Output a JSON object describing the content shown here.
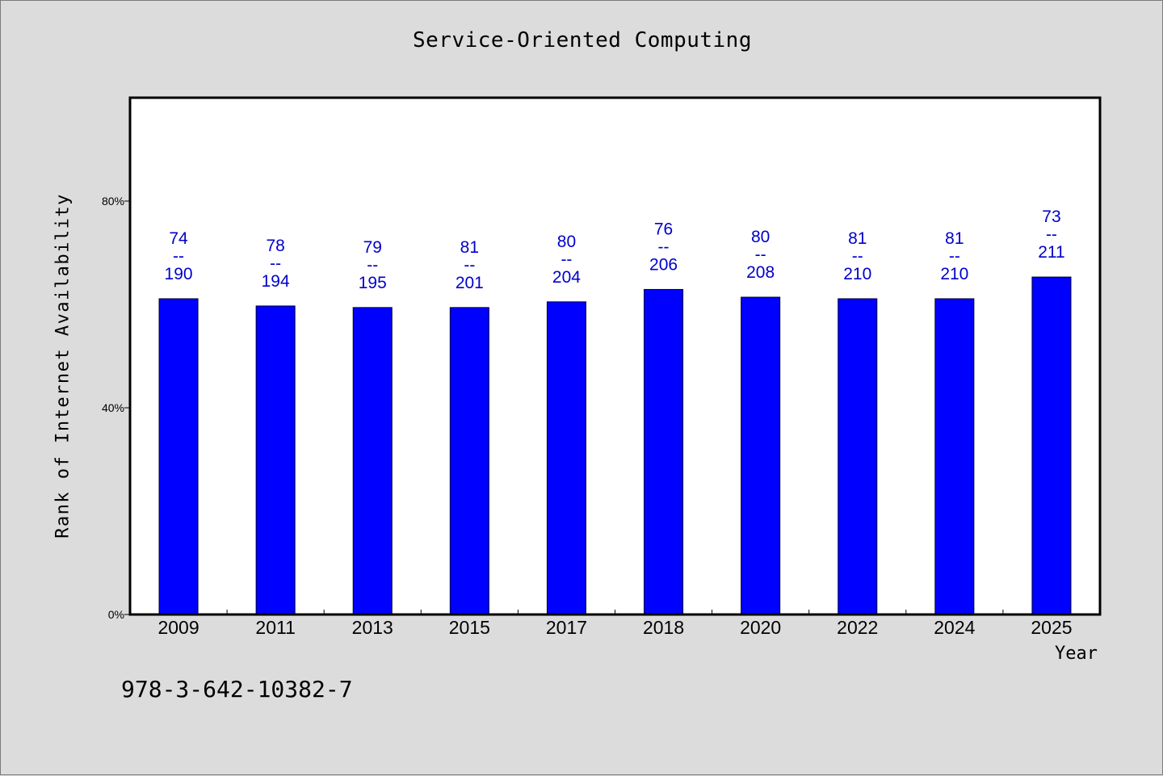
{
  "colors": {
    "background": "#dcdcdc",
    "plot_background": "#ffffff",
    "bar": "#0000ff",
    "data_label": "#0000cc",
    "frame": "#000000"
  },
  "footer": {
    "isbn": "978-3-642-10382-7"
  },
  "chart_data": {
    "type": "bar",
    "title": "Service-Oriented Computing",
    "xlabel": "Year",
    "ylabel": "Rank of Internet Availability",
    "ylim": [
      0,
      100
    ],
    "y_ticks": [
      {
        "value": 0,
        "label": "0%"
      },
      {
        "value": 40,
        "label": "40%"
      },
      {
        "value": 80,
        "label": "80%"
      }
    ],
    "grid": false,
    "categories": [
      "2009",
      "2011",
      "2013",
      "2015",
      "2017",
      "2018",
      "2020",
      "2022",
      "2024",
      "2025"
    ],
    "values": [
      61.1,
      59.7,
      59.4,
      59.4,
      60.5,
      62.9,
      61.4,
      61.1,
      61.1,
      65.3
    ],
    "data_labels": [
      {
        "top": "74",
        "sep": "--",
        "bottom": "190"
      },
      {
        "top": "78",
        "sep": "--",
        "bottom": "194"
      },
      {
        "top": "79",
        "sep": "--",
        "bottom": "195"
      },
      {
        "top": "81",
        "sep": "--",
        "bottom": "201"
      },
      {
        "top": "80",
        "sep": "--",
        "bottom": "204"
      },
      {
        "top": "76",
        "sep": "--",
        "bottom": "206"
      },
      {
        "top": "80",
        "sep": "--",
        "bottom": "208"
      },
      {
        "top": "81",
        "sep": "--",
        "bottom": "210"
      },
      {
        "top": "81",
        "sep": "--",
        "bottom": "210"
      },
      {
        "top": "73",
        "sep": "--",
        "bottom": "211"
      }
    ]
  }
}
